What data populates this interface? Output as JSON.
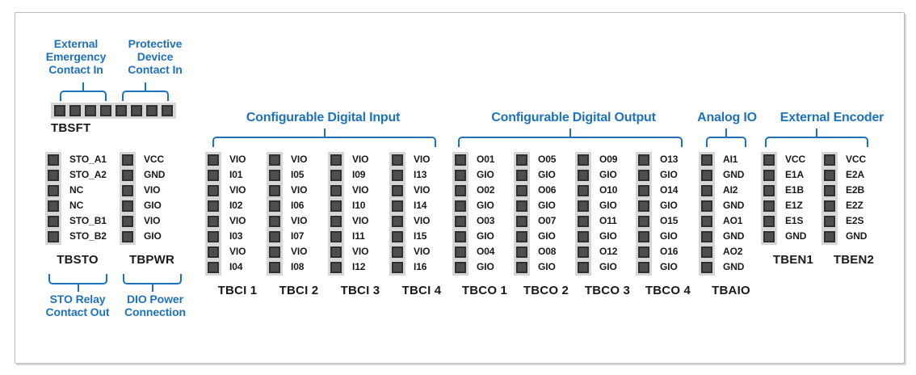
{
  "colors": {
    "accent_blue": "#1e72bd",
    "pin_dark": "#4e4e4e",
    "pin_border": "#303030",
    "strip_gray": "#d6d6d6",
    "ink": "#1a1a1a"
  },
  "tbsft": {
    "label": "TBSFT",
    "pin_count": 8,
    "annotation_left": "External\nEmergency\nContact In",
    "annotation_right": "Protective\nDevice\nContact In"
  },
  "groups": [
    {
      "id": "digital_input",
      "title": "Configurable Digital Input"
    },
    {
      "id": "digital_output",
      "title": "Configurable Digital Output"
    },
    {
      "id": "analog_io",
      "title": "Analog IO"
    },
    {
      "id": "external_encoder",
      "title": "External Encoder"
    }
  ],
  "connectors": {
    "tbsto": {
      "name": "TBSTO",
      "pins": [
        "STO_A1",
        "STO_A2",
        "NC",
        "NC",
        "STO_B1",
        "STO_B2"
      ]
    },
    "tbpwr": {
      "name": "TBPWR",
      "pins": [
        "VCC",
        "GND",
        "VIO",
        "GIO",
        "VIO",
        "GIO"
      ]
    },
    "tbci1": {
      "name": "TBCI 1",
      "pins": [
        "VIO",
        "I01",
        "VIO",
        "I02",
        "VIO",
        "I03",
        "VIO",
        "I04"
      ]
    },
    "tbci2": {
      "name": "TBCI 2",
      "pins": [
        "VIO",
        "I05",
        "VIO",
        "I06",
        "VIO",
        "I07",
        "VIO",
        "I08"
      ]
    },
    "tbci3": {
      "name": "TBCI 3",
      "pins": [
        "VIO",
        "I09",
        "VIO",
        "I10",
        "VIO",
        "I11",
        "VIO",
        "I12"
      ]
    },
    "tbci4": {
      "name": "TBCI 4",
      "pins": [
        "VIO",
        "I13",
        "VIO",
        "I14",
        "VIO",
        "I15",
        "VIO",
        "I16"
      ]
    },
    "tbco1": {
      "name": "TBCO 1",
      "pins": [
        "O01",
        "GIO",
        "O02",
        "GIO",
        "O03",
        "GIO",
        "O04",
        "GIO"
      ]
    },
    "tbco2": {
      "name": "TBCO 2",
      "pins": [
        "O05",
        "GIO",
        "O06",
        "GIO",
        "O07",
        "GIO",
        "O08",
        "GIO"
      ]
    },
    "tbco3": {
      "name": "TBCO 3",
      "pins": [
        "O09",
        "GIO",
        "O10",
        "GIO",
        "O11",
        "GIO",
        "O12",
        "GIO"
      ]
    },
    "tbco4": {
      "name": "TBCO 4",
      "pins": [
        "O13",
        "GIO",
        "O14",
        "GIO",
        "O15",
        "GIO",
        "O16",
        "GIO"
      ]
    },
    "tbaio": {
      "name": "TBAIO",
      "pins": [
        "AI1",
        "GND",
        "AI2",
        "GND",
        "AO1",
        "GND",
        "AO2",
        "GND"
      ]
    },
    "tben1": {
      "name": "TBEN1",
      "pins": [
        "VCC",
        "E1A",
        "E1B",
        "E1Z",
        "E1S",
        "GND"
      ]
    },
    "tben2": {
      "name": "TBEN2",
      "pins": [
        "VCC",
        "E2A",
        "E2B",
        "E2Z",
        "E2S",
        "GND"
      ]
    }
  },
  "bottom_annotations": {
    "sto_relay": "STO Relay\nContact Out",
    "dio_power": "DIO Power\nConnection"
  }
}
